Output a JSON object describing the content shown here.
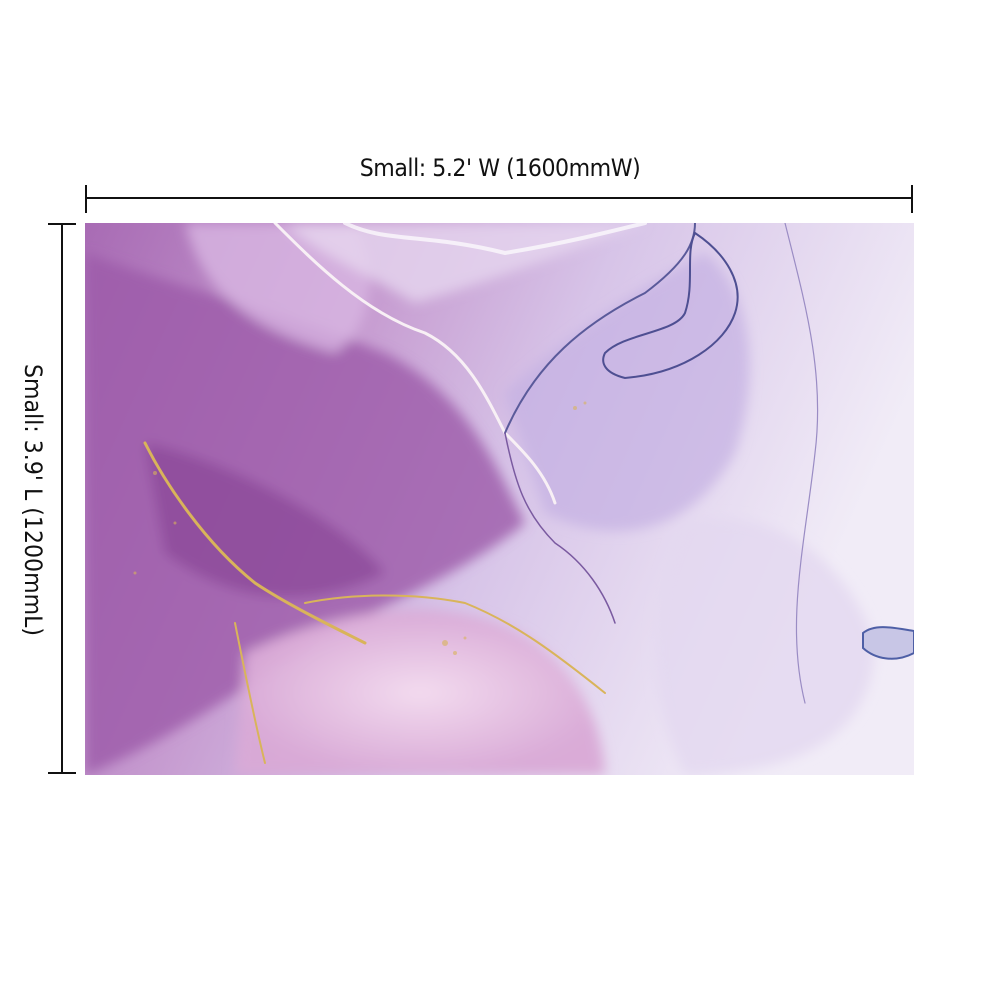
{
  "dimensions": {
    "width_label": "Small: 5.2' W (1600mmW)",
    "length_label": "Small: 3.9' L (1200mmL)"
  },
  "artwork": {
    "subject": "purple-gold-marble-alcohol-ink",
    "colors": {
      "deep_purple": "#9a5aa8",
      "lilac": "#c9a9dc",
      "pale_lavender": "#ece4f3",
      "gold": "#d9b45a",
      "blue_vein": "#5a5a9a"
    }
  }
}
